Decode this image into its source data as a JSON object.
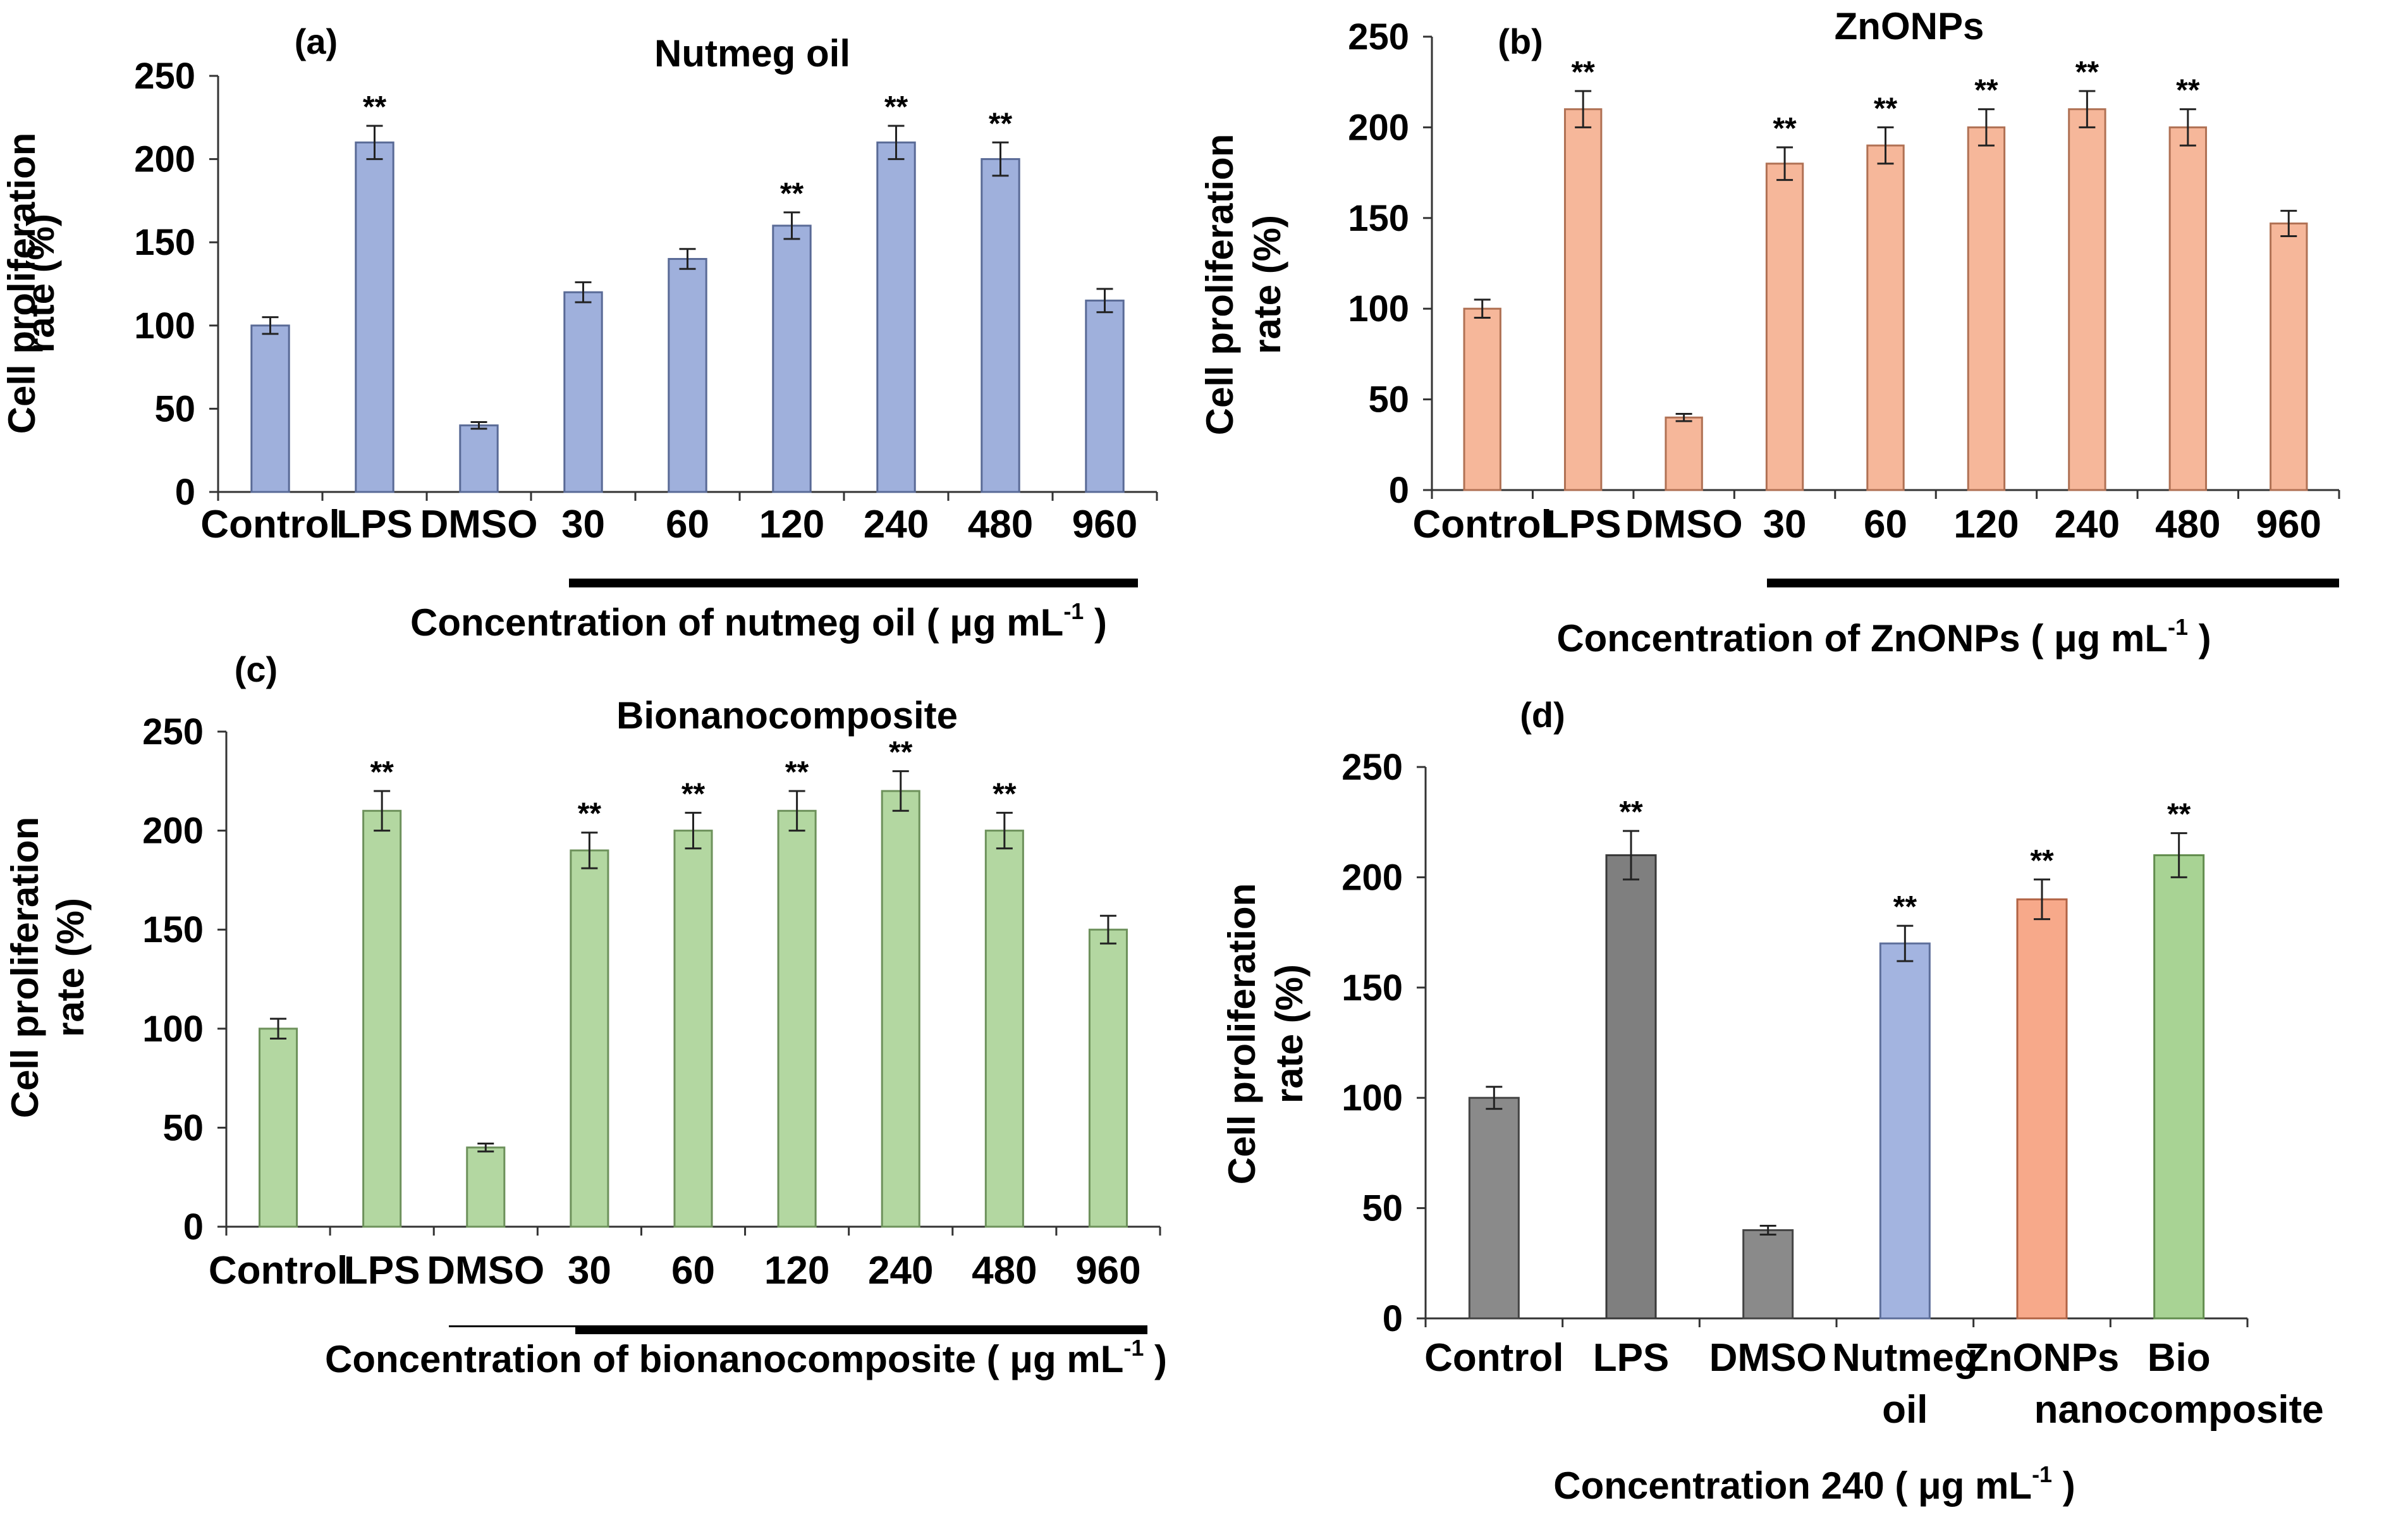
{
  "chart_data": [
    {
      "type": "bar",
      "panel_label": "(a)",
      "title": "Nutmeg oil",
      "ylabel_line1": "Cell proliferation",
      "ylabel_line2": "rate (%)",
      "xlabel_main": "Concentration of nutmeg oil",
      "xlabel_paren_open": "(",
      "xlabel_unit": "μg mL",
      "xlabel_sup": "-1",
      "xlabel_paren_close": ")",
      "categories": [
        [
          "Control"
        ],
        [
          "LPS"
        ],
        [
          "DMSO"
        ],
        [
          "30"
        ],
        [
          "60"
        ],
        [
          "120"
        ],
        [
          "240"
        ],
        [
          "480"
        ],
        [
          "960"
        ]
      ],
      "values": [
        100,
        210,
        40,
        120,
        140,
        160,
        210,
        200,
        115
      ],
      "errors": [
        5,
        10,
        2,
        6,
        6,
        8,
        10,
        10,
        7
      ],
      "significance": [
        "",
        "**",
        "",
        "",
        "",
        "**",
        "**",
        "**",
        ""
      ],
      "bar_colors": [
        "#9fb0dc",
        "#9fb0dc",
        "#9fb0dc",
        "#9fb0dc",
        "#9fb0dc",
        "#9fb0dc",
        "#9fb0dc",
        "#9fb0dc",
        "#9fb0dc"
      ],
      "ylim": [
        0,
        250
      ],
      "yticks": [
        "0",
        "50",
        "100",
        "150",
        "200",
        "250"
      ]
    },
    {
      "type": "bar",
      "panel_label": "(b)",
      "title": "ZnONPs",
      "ylabel_line1": "Cell proliferation",
      "ylabel_line2": "rate (%)",
      "xlabel_main": "Concentration of ZnONPs",
      "xlabel_paren_open": "(",
      "xlabel_unit": "μg mL",
      "xlabel_sup": "-1",
      "xlabel_paren_close": ")",
      "categories": [
        [
          "Control"
        ],
        [
          "LPS"
        ],
        [
          "DMSO"
        ],
        [
          "30"
        ],
        [
          "60"
        ],
        [
          "120"
        ],
        [
          "240"
        ],
        [
          "480"
        ],
        [
          "960"
        ]
      ],
      "values": [
        100,
        210,
        40,
        180,
        190,
        200,
        210,
        200,
        147
      ],
      "errors": [
        5,
        10,
        2,
        9,
        10,
        10,
        10,
        10,
        7
      ],
      "significance": [
        "",
        "**",
        "",
        "**",
        "**",
        "**",
        "**",
        "**",
        ""
      ],
      "bar_colors": [
        "#f6b79a",
        "#f6b79a",
        "#f6b79a",
        "#f6b79a",
        "#f6b79a",
        "#f6b79a",
        "#f6b79a",
        "#f6b79a",
        "#f6b79a"
      ],
      "ylim": [
        0,
        250
      ],
      "yticks": [
        "0",
        "50",
        "100",
        "150",
        "200",
        "250"
      ]
    },
    {
      "type": "bar",
      "panel_label": "(c)",
      "title": "Bionanocomposite",
      "ylabel_line1": "Cell proliferation",
      "ylabel_line2": "rate (%)",
      "xlabel_main": "Concentration of bionanocomposite",
      "xlabel_paren_open": "(",
      "xlabel_unit": "μg mL",
      "xlabel_sup": "-1",
      "xlabel_paren_close": ")",
      "categories": [
        [
          "Control"
        ],
        [
          "LPS"
        ],
        [
          "DMSO"
        ],
        [
          "30"
        ],
        [
          "60"
        ],
        [
          "120"
        ],
        [
          "240"
        ],
        [
          "480"
        ],
        [
          "960"
        ]
      ],
      "values": [
        100,
        210,
        40,
        190,
        200,
        210,
        220,
        200,
        150
      ],
      "errors": [
        5,
        10,
        2,
        9,
        9,
        10,
        10,
        9,
        7
      ],
      "significance": [
        "",
        "**",
        "",
        "**",
        "**",
        "**",
        "**",
        "**",
        ""
      ],
      "bar_colors": [
        "#b3d7a1",
        "#b3d7a1",
        "#b3d7a1",
        "#b3d7a1",
        "#b3d7a1",
        "#b3d7a1",
        "#b3d7a1",
        "#b3d7a1",
        "#b3d7a1"
      ],
      "ylim": [
        0,
        250
      ],
      "yticks": [
        "0",
        "50",
        "100",
        "150",
        "200",
        "250"
      ]
    },
    {
      "type": "bar",
      "panel_label": "(d)",
      "title": "",
      "ylabel_line1": "Cell proliferation",
      "ylabel_line2": "rate (%)",
      "xlabel_main": "Concentration  240",
      "xlabel_paren_open": "(",
      "xlabel_unit": "μg mL",
      "xlabel_sup": "-1",
      "xlabel_paren_close": ")",
      "categories": [
        [
          "Control"
        ],
        [
          "LPS"
        ],
        [
          "DMSO"
        ],
        [
          "Nutmeg",
          "oil"
        ],
        [
          "ZnONPs"
        ],
        [
          "Bio",
          "nanocomposite"
        ]
      ],
      "values": [
        100,
        210,
        40,
        170,
        190,
        210
      ],
      "errors": [
        5,
        11,
        2,
        8,
        9,
        10
      ],
      "significance": [
        "",
        "**",
        "",
        "**",
        "**",
        "**"
      ],
      "bar_colors": [
        "#8a8a8a",
        "#7f7f7f",
        "#8a8a8a",
        "#a3b4e0",
        "#f7a98a",
        "#a8d394"
      ],
      "ylim": [
        0,
        250
      ],
      "yticks": [
        "0",
        "50",
        "100",
        "150",
        "200",
        "250"
      ]
    }
  ]
}
